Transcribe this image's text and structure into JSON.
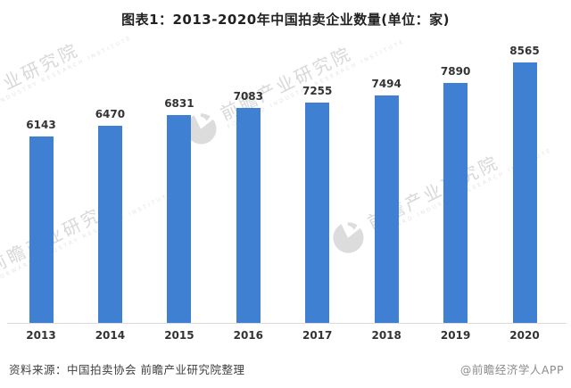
{
  "title": "图表1：2013-2020年中国拍卖企业数量(单位：家)",
  "chart_data": {
    "type": "bar",
    "categories": [
      "2013",
      "2014",
      "2015",
      "2016",
      "2017",
      "2018",
      "2019",
      "2020"
    ],
    "values": [
      6143,
      6470,
      6831,
      7083,
      7255,
      7494,
      7890,
      8565
    ],
    "title": "图表1：2013-2020年中国拍卖企业数量(单位：家)",
    "xlabel": "",
    "ylabel": "",
    "unit": "家",
    "ylim": [
      0,
      9300
    ],
    "grid": false,
    "legend": "none",
    "value_labels": true
  },
  "footer": {
    "source": "资料来源：中国拍卖协会 前瞻产业研究院整理",
    "credit": "@前瞻经济学人APP"
  },
  "watermark": {
    "cn": "前瞻产业研究院",
    "en": "FORWARD INDUSTRY RESEARCH INSTITUTE",
    "logo": "forward-logo"
  },
  "colors": {
    "bar": "#4080D2",
    "axis_line": "#DADADA",
    "value_label": "#333333",
    "tick_label": "#333333",
    "title": "#222222",
    "source": "#404040",
    "credit": "#8C8C8C",
    "watermark": "#D8D8D8",
    "background": "#FFFFFF"
  }
}
